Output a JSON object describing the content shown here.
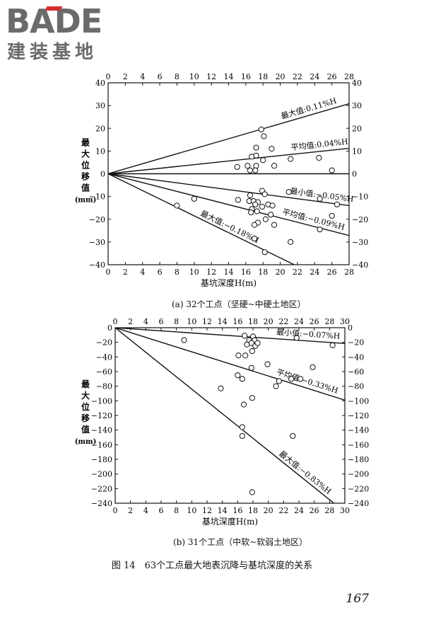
{
  "logo": {
    "brand": "BADE",
    "subtitle": "建装基地"
  },
  "chart_data": [
    {
      "type": "scatter",
      "panel_caption": "(a) 32个工点（坚硬~中硬土地区）",
      "xlabel": "基坑深度H(m)",
      "ylabel": "最大位移值(mm)",
      "ylabel_chars": [
        "最",
        "大",
        "位",
        "移",
        "值",
        "(mm)"
      ],
      "xlim": [
        0,
        28
      ],
      "ylim": [
        -40,
        40
      ],
      "xticks": [
        0,
        2,
        4,
        6,
        8,
        10,
        12,
        14,
        16,
        18,
        20,
        22,
        24,
        26,
        28
      ],
      "yticks": [
        40,
        30,
        20,
        10,
        0,
        -10,
        -20,
        -30,
        -40
      ],
      "lines": [
        {
          "label": "最大值:0.11%H",
          "slope_mm_per_m": 1.1
        },
        {
          "label": "平均值:0.04%H",
          "slope_mm_per_m": 0.4
        },
        {
          "label": "",
          "slope_mm_per_m": 0.0
        },
        {
          "label": "最小值:−0.05%H",
          "slope_mm_per_m": -0.5
        },
        {
          "label": "平均值:−0.09%H",
          "slope_mm_per_m": -0.97
        },
        {
          "label": "最大值:−0.18%H",
          "slope_mm_per_m": -1.85
        }
      ],
      "points": [
        {
          "x": 17.8,
          "y": 19.5
        },
        {
          "x": 18.1,
          "y": 16.5
        },
        {
          "x": 19.0,
          "y": 11.0
        },
        {
          "x": 17.2,
          "y": 11.5
        },
        {
          "x": 16.7,
          "y": 7.5
        },
        {
          "x": 17.2,
          "y": 8.0
        },
        {
          "x": 18.0,
          "y": 6.0
        },
        {
          "x": 21.2,
          "y": 6.5
        },
        {
          "x": 24.5,
          "y": 7.0
        },
        {
          "x": 15.0,
          "y": 3.0
        },
        {
          "x": 16.2,
          "y": 3.5
        },
        {
          "x": 16.5,
          "y": 1.5
        },
        {
          "x": 17.2,
          "y": 3.5
        },
        {
          "x": 17.1,
          "y": 1.5
        },
        {
          "x": 19.3,
          "y": 3.5
        },
        {
          "x": 26.0,
          "y": 1.5
        },
        {
          "x": 17.9,
          "y": -7.5
        },
        {
          "x": 16.5,
          "y": -9.5
        },
        {
          "x": 18.2,
          "y": -9.0
        },
        {
          "x": 21.0,
          "y": -8.0
        },
        {
          "x": 15.1,
          "y": -11.5
        },
        {
          "x": 16.4,
          "y": -12.0
        },
        {
          "x": 16.9,
          "y": -12.0
        },
        {
          "x": 17.4,
          "y": -12.5
        },
        {
          "x": 17.1,
          "y": -13.5
        },
        {
          "x": 17.9,
          "y": -14.5
        },
        {
          "x": 18.6,
          "y": -13.5
        },
        {
          "x": 19.1,
          "y": -14.0
        },
        {
          "x": 16.7,
          "y": -15.5
        },
        {
          "x": 16.6,
          "y": -17.0
        },
        {
          "x": 17.3,
          "y": -16.5
        },
        {
          "x": 18.9,
          "y": -18.0
        },
        {
          "x": 17.4,
          "y": -21.5
        },
        {
          "x": 17.0,
          "y": -22.5
        },
        {
          "x": 18.3,
          "y": -20.0
        },
        {
          "x": 19.3,
          "y": -22.5
        },
        {
          "x": 24.6,
          "y": -11.0
        },
        {
          "x": 26.6,
          "y": -13.5
        },
        {
          "x": 26.0,
          "y": -18.5
        },
        {
          "x": 24.6,
          "y": -24.5
        },
        {
          "x": 17.0,
          "y": -28.5
        },
        {
          "x": 18.2,
          "y": -34.5
        },
        {
          "x": 21.2,
          "y": -30.0
        },
        {
          "x": 10.0,
          "y": -11.0
        },
        {
          "x": 8.0,
          "y": -14.0
        }
      ]
    },
    {
      "type": "scatter",
      "panel_caption": "(b) 31个工点（中软~软弱土地区）",
      "xlabel": "基坑深度H(m)",
      "ylabel": "最大位移值(mm)",
      "ylabel_chars": [
        "最",
        "大",
        "位",
        "移",
        "值",
        "(mm)"
      ],
      "xlim": [
        0,
        30
      ],
      "ylim": [
        -240,
        0
      ],
      "xticks": [
        0,
        2,
        4,
        6,
        8,
        10,
        12,
        14,
        16,
        18,
        20,
        22,
        24,
        26,
        28,
        30
      ],
      "yticks": [
        0,
        -20,
        -40,
        -60,
        -80,
        -100,
        -120,
        -140,
        -160,
        -180,
        -200,
        -220,
        -240
      ],
      "lines": [
        {
          "label": "最小值:−0.07%H",
          "slope_mm_per_m": -0.72
        },
        {
          "label": "平均值:−0.33%H",
          "slope_mm_per_m": -3.3
        },
        {
          "label": "最大值:−0.83%H",
          "slope_mm_per_m": -8.4
        }
      ],
      "points": [
        {
          "x": 16.9,
          "y": -11
        },
        {
          "x": 17.5,
          "y": -17
        },
        {
          "x": 18.0,
          "y": -12
        },
        {
          "x": 18.2,
          "y": -17
        },
        {
          "x": 17.8,
          "y": -21
        },
        {
          "x": 17.2,
          "y": -23
        },
        {
          "x": 18.3,
          "y": -25
        },
        {
          "x": 18.6,
          "y": -21
        },
        {
          "x": 17.9,
          "y": -32
        },
        {
          "x": 16.1,
          "y": -38
        },
        {
          "x": 17.0,
          "y": -38
        },
        {
          "x": 23.7,
          "y": -14
        },
        {
          "x": 28.4,
          "y": -24
        },
        {
          "x": 9.0,
          "y": -17
        },
        {
          "x": 19.9,
          "y": -50
        },
        {
          "x": 17.8,
          "y": -55
        },
        {
          "x": 25.8,
          "y": -54
        },
        {
          "x": 16.0,
          "y": -65
        },
        {
          "x": 16.6,
          "y": -70
        },
        {
          "x": 21.4,
          "y": -73
        },
        {
          "x": 21.0,
          "y": -80
        },
        {
          "x": 23.0,
          "y": -70
        },
        {
          "x": 24.2,
          "y": -70
        },
        {
          "x": 13.8,
          "y": -83
        },
        {
          "x": 17.9,
          "y": -96
        },
        {
          "x": 16.8,
          "y": -105
        },
        {
          "x": 16.6,
          "y": -136
        },
        {
          "x": 16.6,
          "y": -148
        },
        {
          "x": 23.2,
          "y": -148
        },
        {
          "x": 17.9,
          "y": -225
        }
      ]
    }
  ],
  "figure_caption": "图 14　63个工点最大地表沉降与基坑深度的关系",
  "page_number": "167"
}
